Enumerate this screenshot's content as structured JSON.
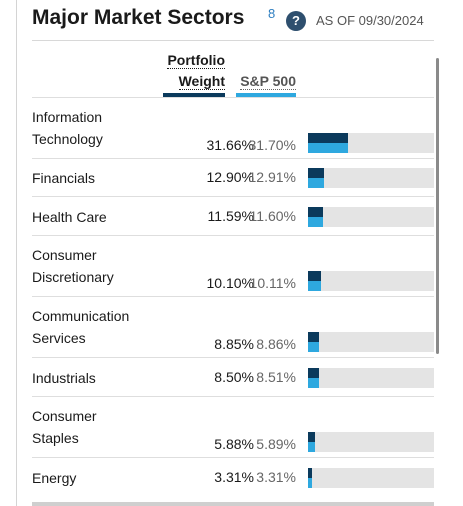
{
  "header": {
    "title": "Major Market Sectors",
    "footnote": "8",
    "help_label": "?",
    "as_of": "AS OF 09/30/2024"
  },
  "columns": {
    "portfolio_line1": "Portfolio",
    "portfolio_line2": "Weight",
    "benchmark": "S&P 500"
  },
  "colors": {
    "portfolio": "#0b3a5c",
    "benchmark": "#2ea8df",
    "track": "#e4e4e4"
  },
  "rows": [
    {
      "line1": "Information",
      "line2": "Technology",
      "portfolio": "31.66%",
      "sp500": "31.70%",
      "p": 31.66,
      "s": 31.7
    },
    {
      "line1": "Financials",
      "line2": "",
      "portfolio": "12.90%",
      "sp500": "12.91%",
      "p": 12.9,
      "s": 12.91
    },
    {
      "line1": "Health Care",
      "line2": "",
      "portfolio": "11.59%",
      "sp500": "11.60%",
      "p": 11.59,
      "s": 11.6
    },
    {
      "line1": "Consumer",
      "line2": "Discretionary",
      "portfolio": "10.10%",
      "sp500": "10.11%",
      "p": 10.1,
      "s": 10.11
    },
    {
      "line1": "Communication",
      "line2": "Services",
      "portfolio": "8.85%",
      "sp500": "8.86%",
      "p": 8.85,
      "s": 8.86
    },
    {
      "line1": "Industrials",
      "line2": "",
      "portfolio": "8.50%",
      "sp500": "8.51%",
      "p": 8.5,
      "s": 8.51
    },
    {
      "line1": "Consumer",
      "line2": "Staples",
      "portfolio": "5.88%",
      "sp500": "5.89%",
      "p": 5.88,
      "s": 5.89
    },
    {
      "line1": "Energy",
      "line2": "",
      "portfolio": "3.31%",
      "sp500": "3.31%",
      "p": 3.31,
      "s": 3.31
    }
  ]
}
